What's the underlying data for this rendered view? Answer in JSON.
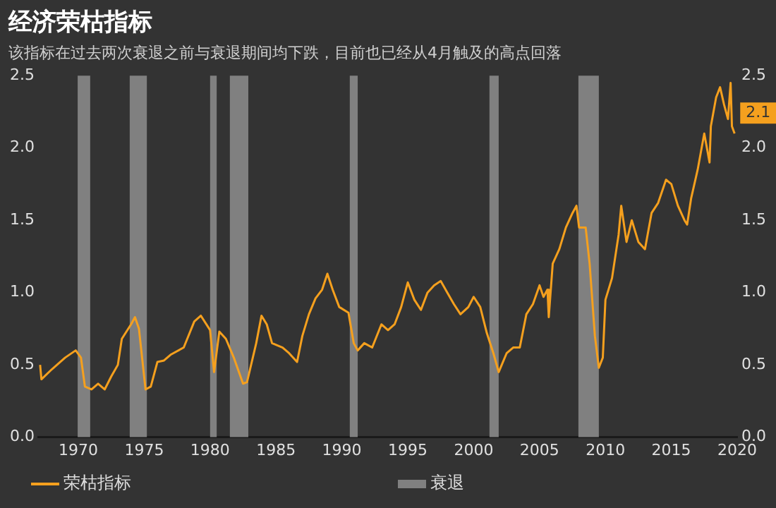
{
  "chart_data": {
    "type": "line",
    "title": "经济荣枯指标",
    "subtitle": "该指标在过去两次衰退之前与衰退期间均下跌，目前也已经从4月触及的高点回落",
    "series": [
      {
        "name": "荣枯指标",
        "color": "#f5a01e",
        "x": [
          1967.1,
          1967.2,
          1968,
          1969,
          1969.8,
          1970.2,
          1970.5,
          1971,
          1971.5,
          1972,
          1972.5,
          1973,
          1973.3,
          1974,
          1974.3,
          1974.6,
          1975.1,
          1975.5,
          1976,
          1976.5,
          1977,
          1978,
          1978.8,
          1979.3,
          1980,
          1980.3,
          1980.7,
          1981.2,
          1981.8,
          1982.5,
          1982.8,
          1983.5,
          1983.9,
          1984.3,
          1984.7,
          1985.5,
          1986,
          1986.6,
          1987,
          1987.5,
          1988,
          1988.5,
          1988.9,
          1989.3,
          1989.8,
          1990.5,
          1990.9,
          1991.2,
          1991.7,
          1992.3,
          1993,
          1993.5,
          1994,
          1994.5,
          1995,
          1995.5,
          1996,
          1996.5,
          1997,
          1997.5,
          1998,
          1998.5,
          1999,
          1999.6,
          2000,
          2000.5,
          2001,
          2001.5,
          2001.9,
          2002.5,
          2003,
          2003.5,
          2004,
          2004.5,
          2005,
          2005.3,
          2005.6,
          2005.7,
          2006,
          2006.5,
          2007,
          2007.5,
          2007.8,
          2008,
          2008.5,
          2008.8,
          2009.2,
          2009.5,
          2009.8,
          2010,
          2010.5,
          2011,
          2011.2,
          2011.6,
          2012,
          2012.5,
          2013,
          2013.5,
          2014,
          2014.6,
          2015,
          2015.5,
          2016,
          2016.2,
          2016.5,
          2017,
          2017.5,
          2017.7,
          2017.9,
          2018,
          2018.4,
          2018.7,
          2019,
          2019.3,
          2019.5,
          2019.6,
          2019.8
        ],
        "values": [
          0.5,
          0.4,
          0.47,
          0.55,
          0.6,
          0.55,
          0.35,
          0.33,
          0.37,
          0.33,
          0.42,
          0.5,
          0.68,
          0.78,
          0.83,
          0.75,
          0.33,
          0.35,
          0.52,
          0.53,
          0.57,
          0.62,
          0.8,
          0.84,
          0.74,
          0.45,
          0.73,
          0.68,
          0.55,
          0.37,
          0.38,
          0.65,
          0.84,
          0.78,
          0.65,
          0.62,
          0.58,
          0.52,
          0.7,
          0.85,
          0.96,
          1.02,
          1.13,
          1.02,
          0.9,
          0.86,
          0.65,
          0.6,
          0.65,
          0.62,
          0.78,
          0.74,
          0.78,
          0.9,
          1.07,
          0.95,
          0.88,
          1.0,
          1.05,
          1.08,
          1.0,
          0.92,
          0.85,
          0.9,
          0.97,
          0.9,
          0.72,
          0.58,
          0.45,
          0.58,
          0.62,
          0.62,
          0.85,
          0.92,
          1.05,
          0.97,
          1.02,
          0.83,
          1.2,
          1.3,
          1.45,
          1.55,
          1.6,
          1.45,
          1.45,
          1.2,
          0.7,
          0.48,
          0.55,
          0.95,
          1.1,
          1.4,
          1.6,
          1.35,
          1.5,
          1.35,
          1.3,
          1.55,
          1.62,
          1.78,
          1.75,
          1.6,
          1.5,
          1.47,
          1.65,
          1.85,
          2.1,
          2.0,
          1.9,
          2.15,
          2.35,
          2.42,
          2.3,
          2.2,
          2.45,
          2.15,
          2.1
        ]
      }
    ],
    "xlim": [
      1967,
      2020
    ],
    "xticks": [
      1970,
      1975,
      1980,
      1985,
      1990,
      1995,
      2000,
      2005,
      2010,
      2015,
      2020
    ],
    "ylim": [
      0,
      2.5
    ],
    "yticks": [
      {
        "value": 0,
        "label": "0.0"
      },
      {
        "value": 0.5,
        "label": "0.5"
      },
      {
        "value": 1,
        "label": "1.0"
      },
      {
        "value": 1.5,
        "label": "1.5"
      },
      {
        "value": 2,
        "label": "2.0"
      },
      {
        "value": 2.5,
        "label": "2.5"
      }
    ],
    "y2lim": [
      0,
      2.5
    ],
    "y2ticks": [
      {
        "value": 0,
        "label": "0.0"
      },
      {
        "value": 0.5,
        "label": "0.5"
      },
      {
        "value": 1,
        "label": "1.0"
      },
      {
        "value": 1.5,
        "label": "1.5"
      },
      {
        "value": 2,
        "label": "2.0"
      },
      {
        "value": 2.5,
        "label": "2.5"
      }
    ],
    "bands": [
      {
        "axis": "x",
        "from": 1969.95,
        "to": 1970.9,
        "label": "衰退",
        "color": "#808080"
      },
      {
        "axis": "x",
        "from": 1973.9,
        "to": 1975.2,
        "color": "#808080"
      },
      {
        "axis": "x",
        "from": 1980.0,
        "to": 1980.5,
        "color": "#808080"
      },
      {
        "axis": "x",
        "from": 1981.5,
        "to": 1982.9,
        "color": "#808080"
      },
      {
        "axis": "x",
        "from": 1990.6,
        "to": 1991.2,
        "color": "#808080"
      },
      {
        "axis": "x",
        "from": 2001.2,
        "to": 2001.9,
        "color": "#808080"
      },
      {
        "axis": "x",
        "from": 2007.95,
        "to": 2009.5,
        "color": "#808080"
      }
    ],
    "annotations": [
      {
        "text": "2.1",
        "x": 2019.8,
        "y": 2.1
      }
    ],
    "grid": false,
    "legend": "bottom",
    "marker": "none",
    "line_style": "solid"
  }
}
